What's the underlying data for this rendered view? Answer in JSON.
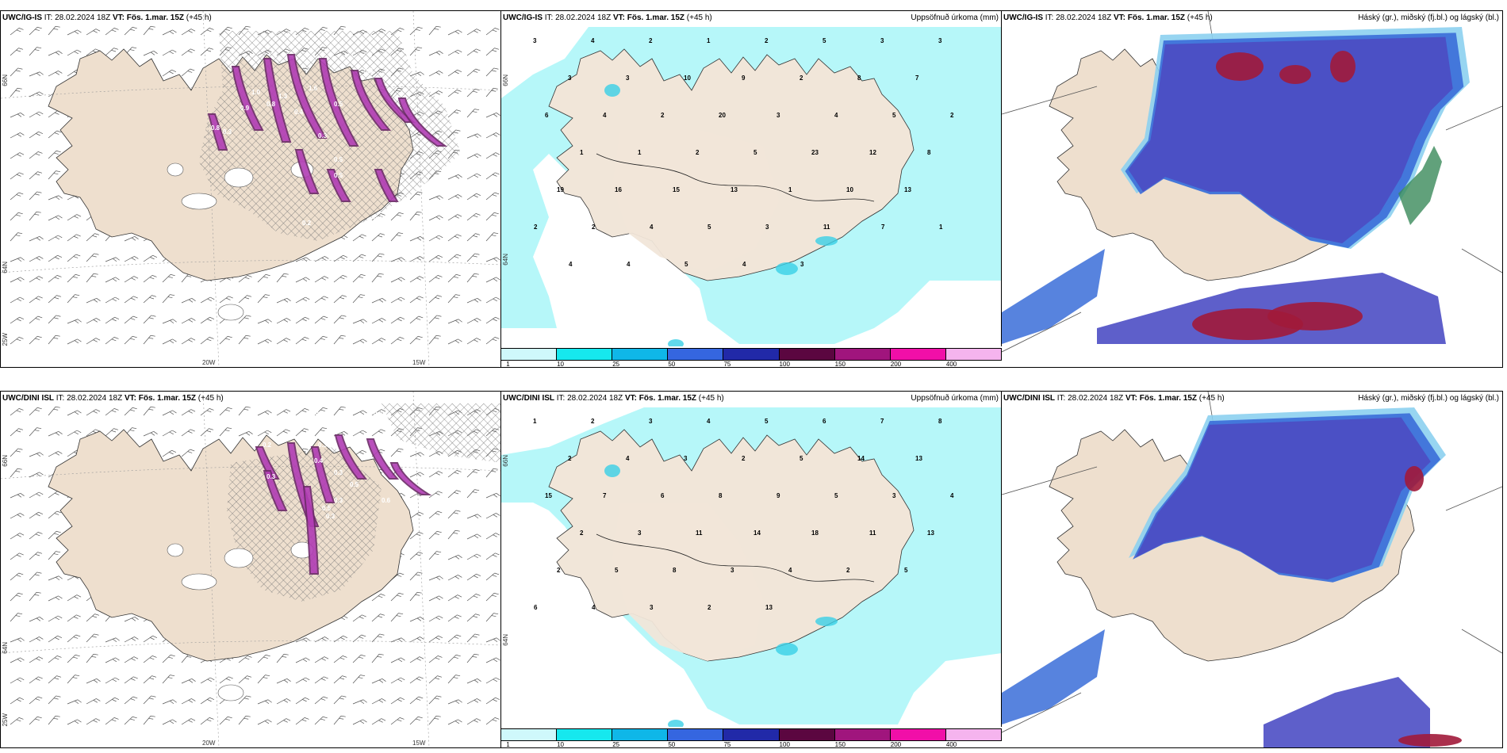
{
  "panels": [
    {
      "model": "UWC/IG-IS",
      "it_label": "IT: 28.02.2024 18Z",
      "vt_label": "VT: Fös. 1.mar. 15Z",
      "lead": "(+45 h)",
      "product": "",
      "lat_labels": [
        "66N",
        "64N",
        "25W"
      ],
      "lon_labels": [
        "20W",
        "15W"
      ],
      "values": [
        "0.4",
        "1.0",
        "0.9",
        "0.8",
        "1.3",
        "1.6",
        "0.5",
        "0.4",
        "0.3",
        "0.5",
        "0.5",
        "0.2",
        "0.8",
        "0.3",
        "0.2"
      ]
    },
    {
      "model": "UWC/IG-IS",
      "it_label": "IT: 28.02.2024 18Z",
      "vt_label": "VT: Fös. 1.mar. 15Z",
      "lead": "(+45 h)",
      "product": "Uppsöfnuð úrkoma (mm)",
      "lat_labels": [
        "66N",
        "64N"
      ],
      "lon_labels": [],
      "values": [
        "3",
        "4",
        "2",
        "1",
        "2",
        "5",
        "3",
        "3",
        "3",
        "3",
        "10",
        "9",
        "2",
        "8",
        "7",
        "6",
        "4",
        "2",
        "20",
        "3",
        "4",
        "5",
        "2",
        "1",
        "1",
        "2",
        "5",
        "23",
        "12",
        "8",
        "19",
        "16",
        "15",
        "13",
        "1",
        "10",
        "13",
        "2",
        "2",
        "4",
        "5",
        "3",
        "11",
        "7",
        "1",
        "4",
        "4",
        "5",
        "4",
        "3"
      ]
    },
    {
      "model": "UWC/IG-IS",
      "it_label": "IT: 28.02.2024 18Z",
      "vt_label": "VT: Fös. 1.mar. 15Z",
      "lead": "(+45 h)",
      "product": "Háský (gr.), miðský (fj.bl.) og lágský (bl.)",
      "lat_labels": [],
      "lon_labels": [],
      "values": []
    },
    {
      "model": "UWC/DINI ISL",
      "it_label": "IT: 28.02.2024 18Z",
      "vt_label": "VT: Fös. 1.mar. 15Z",
      "lead": "(+45 h)",
      "product": "",
      "lat_labels": [
        "66N",
        "64N",
        "25W"
      ],
      "lon_labels": [
        "20W",
        "15W"
      ],
      "values": [
        "0.3",
        "0.4",
        "0.6",
        "0.3",
        "0.4",
        "0.3",
        "0.3",
        "0.5",
        "0.3",
        "0.2",
        "0.3",
        "0.5",
        "0.6",
        "0.3"
      ]
    },
    {
      "model": "UWC/DINI ISL",
      "it_label": "IT: 28.02.2024 18Z",
      "vt_label": "VT: Fös. 1.mar. 15Z",
      "lead": "(+45 h)",
      "product": "Uppsöfnuð úrkoma (mm)",
      "lat_labels": [
        "66N",
        "64N"
      ],
      "lon_labels": [],
      "values": [
        "1",
        "2",
        "3",
        "4",
        "5",
        "6",
        "7",
        "8",
        "2",
        "4",
        "3",
        "2",
        "5",
        "14",
        "13",
        "15",
        "7",
        "6",
        "8",
        "9",
        "5",
        "3",
        "4",
        "2",
        "3",
        "11",
        "14",
        "18",
        "11",
        "13",
        "2",
        "5",
        "8",
        "3",
        "4",
        "2",
        "5",
        "6",
        "4",
        "3",
        "2",
        "13"
      ]
    },
    {
      "model": "UWC/DINI ISL",
      "it_label": "IT: 28.02.2024 18Z",
      "vt_label": "VT: Fös. 1.mar. 15Z",
      "lead": "(+45 h)",
      "product": "Háský (gr.), miðský (fj.bl.) og lágský (bl.)",
      "lat_labels": [],
      "lon_labels": [],
      "values": []
    }
  ],
  "colorbar": {
    "ticks": [
      "1",
      "10",
      "25",
      "50",
      "75",
      "100",
      "150",
      "200",
      "400"
    ],
    "colors": [
      "#cff8fb",
      "#16e8ee",
      "#0fb7e8",
      "#3566e0",
      "#2129a8",
      "#5b0640",
      "#a0157d",
      "#f10fa8",
      "#f5b4ee"
    ]
  },
  "colors": {
    "land": "#eedfce",
    "land_snow": "#f1e6d9",
    "ice": "#ffffff",
    "precip_light": "#b6f7f9",
    "snow_purple": "#b13cb4",
    "snow_purple_dark": "#6c2a68",
    "cloud_high": "#4c4ec4",
    "cloud_mid": "#3a6dd8",
    "cloud_low": "#8cd0f0",
    "cloud_red": "#a11a3a"
  }
}
